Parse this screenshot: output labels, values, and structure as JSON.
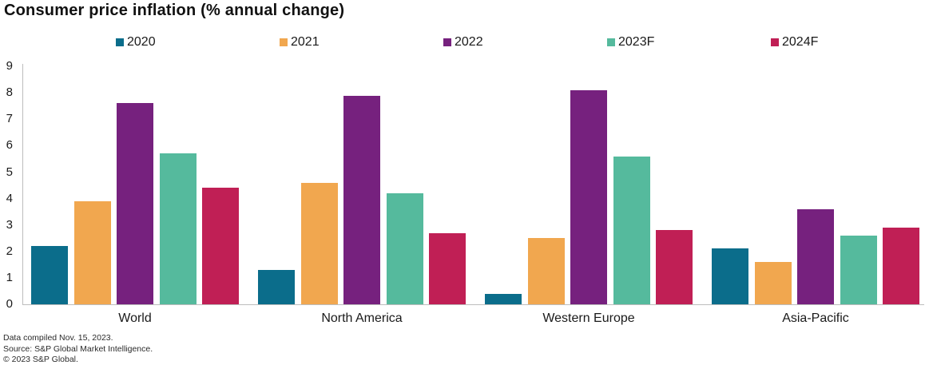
{
  "chart_data": {
    "type": "bar",
    "title": "Consumer price inflation (% annual change)",
    "categories": [
      "World",
      "North America",
      "Western Europe",
      "Asia-Pacific"
    ],
    "series": [
      {
        "name": "2020",
        "color": "#0b6d8b",
        "values": [
          2.2,
          1.3,
          0.4,
          2.1
        ]
      },
      {
        "name": "2021",
        "color": "#f1a74f",
        "values": [
          3.9,
          4.6,
          2.5,
          1.6
        ]
      },
      {
        "name": "2022",
        "color": "#76217e",
        "values": [
          7.6,
          7.9,
          8.1,
          3.6
        ]
      },
      {
        "name": "2023F",
        "color": "#55ba9d",
        "values": [
          5.7,
          4.2,
          5.6,
          2.6
        ]
      },
      {
        "name": "2024F",
        "color": "#c01f55",
        "values": [
          4.4,
          2.7,
          2.8,
          2.9
        ]
      }
    ],
    "ylim": [
      0,
      9
    ],
    "yticks": [
      0,
      1,
      2,
      3,
      4,
      5,
      6,
      7,
      8,
      9
    ],
    "xlabel": "",
    "ylabel": "",
    "grid": false,
    "legend_position": "top"
  },
  "footer": {
    "compiled": "Data compiled Nov. 15, 2023.",
    "source": "Source: S&P Global Market Intelligence.",
    "copyright": "© 2023 S&P Global."
  }
}
